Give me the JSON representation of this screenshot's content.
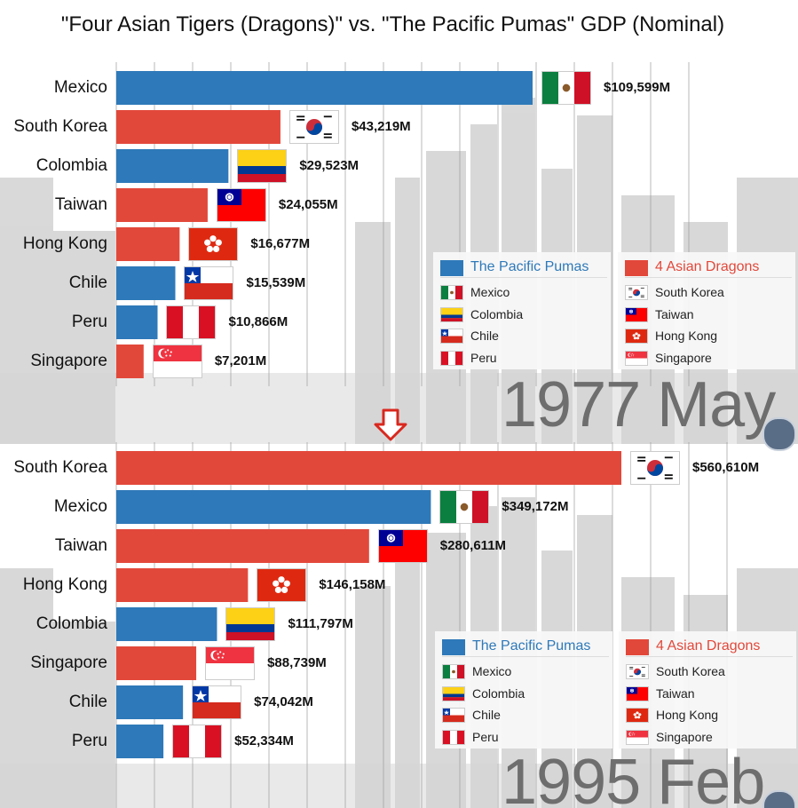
{
  "title": "\"Four Asian Tigers (Dragons)\" vs. \"The Pacific Pumas\" GDP (Nominal)",
  "colors": {
    "pumas": "#2e79b9",
    "dragons": "#e2483a",
    "grid": "#9c9c9c",
    "background_city": "#a9a9a9"
  },
  "legends": {
    "pumas": {
      "title": "The Pacific Pumas",
      "items": [
        "Mexico",
        "Colombia",
        "Chile",
        "Peru"
      ]
    },
    "dragons": {
      "title": "4 Asian Dragons",
      "items": [
        "South Korea",
        "Taiwan",
        "Hong Kong",
        "Singapore"
      ]
    }
  },
  "chart_data": [
    {
      "type": "bar",
      "orientation": "horizontal",
      "date_label": "1977 May",
      "categories": [
        "Mexico",
        "South Korea",
        "Colombia",
        "Taiwan",
        "Hong Kong",
        "Chile",
        "Peru",
        "Singapore"
      ],
      "values": [
        109599,
        43219,
        29523,
        24055,
        16677,
        15539,
        10866,
        7201
      ],
      "value_labels": [
        "$109,599M",
        "$43,219M",
        "$29,523M",
        "$24,055M",
        "$16,677M",
        "$15,539M",
        "$10,866M",
        "$7,201M"
      ],
      "groups": [
        "pumas",
        "dragons",
        "pumas",
        "dragons",
        "dragons",
        "pumas",
        "pumas",
        "dragons"
      ],
      "xlim": [
        0,
        120000
      ],
      "grid": true,
      "legend_position": "bottom-right"
    },
    {
      "type": "bar",
      "orientation": "horizontal",
      "date_label": "1995 Feb",
      "categories": [
        "South Korea",
        "Mexico",
        "Taiwan",
        "Hong Kong",
        "Colombia",
        "Singapore",
        "Chile",
        "Peru"
      ],
      "values": [
        560610,
        349172,
        280611,
        146158,
        111797,
        88739,
        74042,
        52334
      ],
      "value_labels": [
        "$560,610M",
        "$349,172M",
        "$280,611M",
        "$146,158M",
        "$111,797M",
        "$88,739M",
        "$74,042M",
        "$52,334M"
      ],
      "groups": [
        "dragons",
        "pumas",
        "dragons",
        "dragons",
        "pumas",
        "dragons",
        "pumas",
        "pumas"
      ],
      "xlim": [
        0,
        600000
      ],
      "grid": true,
      "legend_position": "bottom-right"
    }
  ]
}
